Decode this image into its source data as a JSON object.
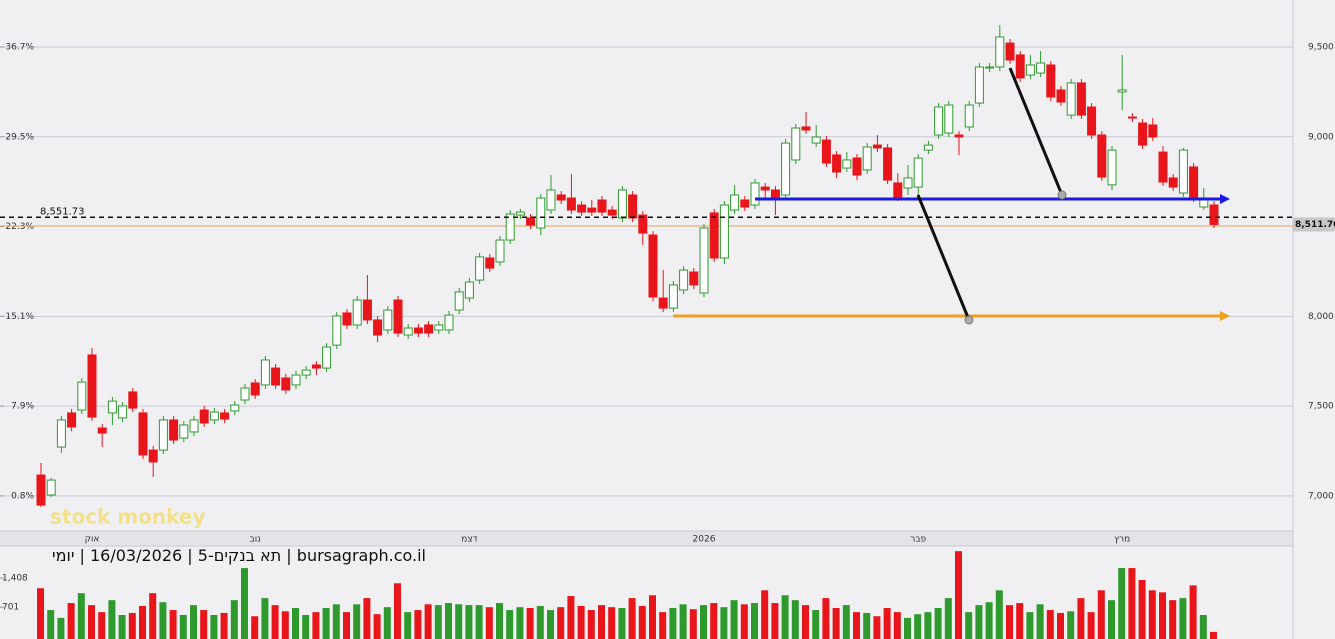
{
  "chart_data": {
    "type": "candlestick",
    "title": "bursagraph.co.il | תא בנקים-5 | 16/03/2026 | יומי",
    "watermark": "stock monkey",
    "categories": [
      null,
      null,
      null,
      null,
      null,
      "אוק",
      null,
      null,
      null,
      null,
      null,
      null,
      null,
      null,
      null,
      null,
      null,
      null,
      null,
      null,
      null,
      "נוב",
      null,
      null,
      null,
      null,
      null,
      null,
      null,
      null,
      null,
      null,
      null,
      null,
      null,
      null,
      null,
      null,
      null,
      null,
      null,
      null,
      "דצמ",
      null,
      null,
      null,
      null,
      null,
      null,
      null,
      null,
      null,
      null,
      null,
      null,
      null,
      null,
      null,
      null,
      null,
      null,
      null,
      null,
      null,
      null,
      "2026",
      null,
      null,
      null,
      null,
      null,
      null,
      null,
      null,
      null,
      null,
      null,
      null,
      null,
      null,
      null,
      null,
      null,
      null,
      null,
      null,
      "פבר",
      null,
      null,
      null,
      null,
      null,
      null,
      null,
      null,
      null,
      null,
      null,
      null,
      null,
      null,
      null,
      null,
      null,
      null,
      null,
      "מרץ",
      null,
      null,
      null,
      null,
      null,
      null,
      null,
      null,
      null
    ],
    "open": [
      7116,
      7005,
      7272,
      7462,
      7478,
      7785,
      7378,
      7462,
      7434,
      7579,
      7462,
      7255,
      7255,
      7423,
      7322,
      7356,
      7478,
      7423,
      7462,
      7473,
      7534,
      7629,
      7618,
      7712,
      7657,
      7618,
      7673,
      7729,
      7712,
      7840,
      8019,
      7952,
      8091,
      7980,
      7924,
      8091,
      7896,
      7935,
      7952,
      7924,
      7924,
      8035,
      8102,
      8202,
      8325,
      8303,
      8425,
      8564,
      8548,
      8492,
      8592,
      8676,
      8659,
      8620,
      8603,
      8648,
      8592,
      8548,
      8676,
      8564,
      8453,
      8102,
      8046,
      8147,
      8247,
      8130,
      8576,
      8325,
      8592,
      8648,
      8620,
      8720,
      8704,
      8676,
      8871,
      9055,
      8965,
      8982,
      8899,
      8826,
      8882,
      8815,
      8954,
      8938,
      8743,
      8715,
      8720,
      8926,
      9010,
      9021,
      9010,
      9055,
      9188,
      9383,
      9389,
      9522,
      9456,
      9344,
      9355,
      9400,
      9261,
      9121,
      9300,
      9166,
      9010,
      8732,
      9250,
      9110,
      9077,
      9066,
      8915,
      8771,
      8687,
      8832,
      8609,
      8620
    ],
    "high": [
      7183,
      7100,
      7445,
      7484,
      7657,
      7824,
      7400,
      7551,
      7523,
      7601,
      7484,
      7278,
      7445,
      7445,
      7417,
      7445,
      7501,
      7489,
      7484,
      7528,
      7623,
      7651,
      7779,
      7735,
      7679,
      7696,
      7723,
      7751,
      7851,
      8024,
      8041,
      8113,
      8230,
      8002,
      8058,
      8113,
      7957,
      7957,
      7974,
      7974,
      8030,
      8158,
      8214,
      8353,
      8347,
      8447,
      8592,
      8598,
      8570,
      8681,
      8787,
      8698,
      8793,
      8642,
      8648,
      8670,
      8615,
      8726,
      8698,
      8587,
      8475,
      8258,
      8197,
      8280,
      8269,
      8514,
      8598,
      8642,
      8732,
      8670,
      8765,
      8743,
      8726,
      8988,
      9071,
      9138,
      9066,
      9004,
      8921,
      8915,
      8904,
      8965,
      9010,
      8960,
      8798,
      8843,
      8904,
      8977,
      9188,
      9199,
      9032,
      9199,
      9411,
      9411,
      9623,
      9545,
      9478,
      9456,
      9478,
      9422,
      9283,
      9322,
      9322,
      9188,
      9032,
      8949,
      9456,
      9133,
      9099,
      9105,
      8949,
      8793,
      8938,
      8854,
      8715,
      8642
    ],
    "low": [
      6938,
      6994,
      7239,
      7361,
      7456,
      7417,
      7272,
      7395,
      7411,
      7467,
      7205,
      7105,
      7233,
      7289,
      7300,
      7333,
      7384,
      7400,
      7406,
      7450,
      7512,
      7540,
      7595,
      7595,
      7567,
      7595,
      7651,
      7673,
      7690,
      7818,
      7929,
      7929,
      7957,
      7857,
      7902,
      7885,
      7874,
      7885,
      7885,
      7902,
      7902,
      8013,
      8080,
      8180,
      8247,
      8280,
      8403,
      8542,
      8486,
      8453,
      8570,
      8626,
      8570,
      8559,
      8559,
      8559,
      8542,
      8525,
      8525,
      8397,
      8085,
      8024,
      8024,
      8124,
      8152,
      8108,
      8303,
      8292,
      8570,
      8587,
      8598,
      8648,
      8564,
      8654,
      8849,
      9016,
      8943,
      8832,
      8771,
      8804,
      8759,
      8793,
      8915,
      8737,
      8642,
      8676,
      8676,
      8904,
      8988,
      8999,
      8899,
      9032,
      9166,
      9361,
      9367,
      9406,
      9305,
      9322,
      9333,
      9199,
      9172,
      9099,
      9099,
      8988,
      8754,
      8704,
      9149,
      9082,
      8932,
      8977,
      8726,
      8698,
      8665,
      8637,
      8592,
      8492
    ],
    "close": [
      6949,
      7088,
      7423,
      7384,
      7634,
      7439,
      7350,
      7528,
      7501,
      7489,
      7228,
      7189,
      7423,
      7311,
      7395,
      7423,
      7406,
      7467,
      7428,
      7506,
      7601,
      7562,
      7757,
      7618,
      7590,
      7673,
      7701,
      7712,
      7829,
      8002,
      7952,
      8091,
      7980,
      7896,
      8035,
      7907,
      7935,
      7907,
      7907,
      7952,
      8007,
      8136,
      8191,
      8331,
      8269,
      8425,
      8570,
      8581,
      8509,
      8659,
      8704,
      8648,
      8592,
      8581,
      8581,
      8581,
      8564,
      8704,
      8548,
      8464,
      8108,
      8046,
      8175,
      8258,
      8175,
      8492,
      8325,
      8620,
      8676,
      8609,
      8743,
      8704,
      8665,
      8965,
      9049,
      9038,
      8999,
      8854,
      8804,
      8871,
      8787,
      8943,
      8938,
      8759,
      8665,
      8771,
      8882,
      8954,
      9166,
      9177,
      8999,
      9177,
      9389,
      9389,
      9556,
      9428,
      9328,
      9400,
      9411,
      9222,
      9194,
      9300,
      9121,
      9010,
      8776,
      8926,
      9261,
      9105,
      8954,
      8999,
      8748,
      8720,
      8926,
      8659,
      8648,
      8511.7
    ],
    "volume": [
      1160,
      630,
      440,
      800,
      1040,
      750,
      580,
      870,
      510,
      560,
      730,
      1040,
      820,
      630,
      510,
      750,
      630,
      510,
      560,
      870,
      1650,
      480,
      920,
      750,
      600,
      680,
      510,
      580,
      680,
      770,
      580,
      770,
      920,
      530,
      700,
      1280,
      580,
      630,
      770,
      750,
      800,
      770,
      750,
      750,
      700,
      800,
      630,
      700,
      680,
      730,
      630,
      700,
      970,
      730,
      630,
      750,
      700,
      680,
      920,
      730,
      990,
      580,
      680,
      770,
      650,
      750,
      800,
      700,
      870,
      770,
      800,
      1110,
      800,
      990,
      870,
      750,
      630,
      920,
      680,
      750,
      580,
      560,
      480,
      680,
      580,
      440,
      530,
      580,
      680,
      920,
      2060,
      580,
      750,
      820,
      1110,
      750,
      800,
      580,
      770,
      630,
      560,
      600,
      920,
      580,
      1110,
      870,
      1650,
      1650,
      1360,
      1110,
      1060,
      870,
      920,
      1230,
      510,
      100
    ],
    "up_color": "#2e9a2e",
    "down_color": "#e8151b",
    "ylim": [
      6810,
      9762
    ],
    "yticks": [
      {
        "value": 9500,
        "label": "9,500"
      },
      {
        "value": 9000,
        "label": "9,000"
      },
      {
        "value": 8000,
        "label": "8,000"
      },
      {
        "value": 7500,
        "label": "7,500"
      },
      {
        "value": 7000,
        "label": "7,000"
      }
    ],
    "left_ticks": [
      {
        "value": 9500,
        "label": "36.7%"
      },
      {
        "value": 9000,
        "label": "29.5%"
      },
      {
        "value": 8500,
        "label": "22.3%"
      },
      {
        "value": 8000,
        "label": "15.1%"
      },
      {
        "value": 7500,
        "label": "7.9%"
      },
      {
        "value": 7000,
        "label": "0.8%"
      }
    ],
    "ref_line": {
      "value": 8551.73,
      "label": "8,551.73"
    },
    "last_price": {
      "value": 8511.7,
      "label": "8,511.70"
    },
    "vol_ylim": [
      0,
      2210
    ],
    "vol_ticks": [
      {
        "value": 1408,
        "label": "1,408"
      },
      701
    ],
    "grid": true
  }
}
